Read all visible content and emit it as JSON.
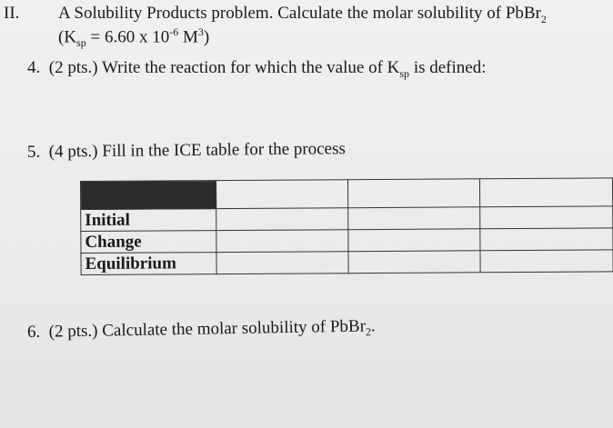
{
  "section": {
    "number": "II.",
    "title": "A Solubility Products problem. Calculate the molar solubility of PbBr",
    "title_sub": "2",
    "ksp_open": "(K",
    "ksp_sub": "sp",
    "ksp_value": " = 6.60 x 10",
    "ksp_exp": "-6",
    "ksp_unit": " M",
    "ksp_unit_exp": "3",
    "ksp_close": ")"
  },
  "questions": [
    {
      "number": "4.",
      "points": "(2 pts.)",
      "text": "Write the reaction for which the value of K",
      "sub": "sp",
      "tail": " is defined:"
    },
    {
      "number": "5.",
      "points": "(4 pts.)",
      "text": "Fill in the ICE table for the process"
    },
    {
      "number": "6.",
      "points": "(2 pts.)",
      "text": "Calculate the molar solubility of PbBr",
      "sub": "2",
      "tail": "."
    }
  ],
  "ice_table": {
    "rows": [
      "Initial",
      "Change",
      "Equilibrium"
    ]
  }
}
